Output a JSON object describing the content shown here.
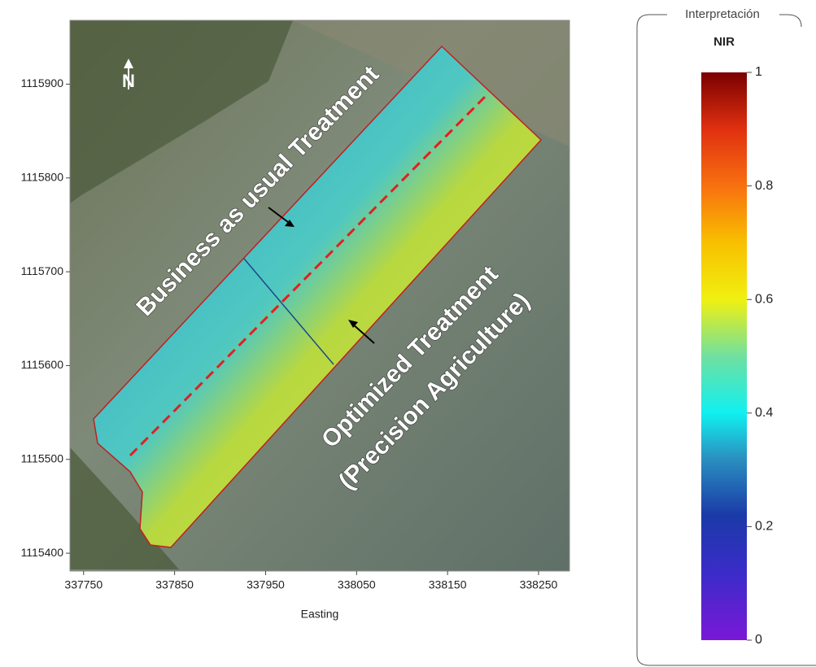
{
  "map": {
    "x_axis": {
      "label": "Easting",
      "lim": [
        337735,
        338284
      ],
      "ticks": [
        337750,
        337850,
        337950,
        338050,
        338150,
        338250
      ]
    },
    "y_axis": {
      "lim": [
        1115381,
        1115968
      ],
      "ticks": [
        1115400,
        1115500,
        1115600,
        1115700,
        1115800,
        1115900
      ]
    },
    "north_label": "N",
    "annotations": [
      "Business as usual Treatment",
      "Optimized Treatment",
      "(Precision Agriculture)"
    ]
  },
  "legend": {
    "title": "Interpretación",
    "subtitle": "NIR",
    "lim": [
      0,
      1
    ],
    "ticks": [
      0,
      0.2,
      0.4,
      0.6,
      0.8,
      1
    ]
  }
}
